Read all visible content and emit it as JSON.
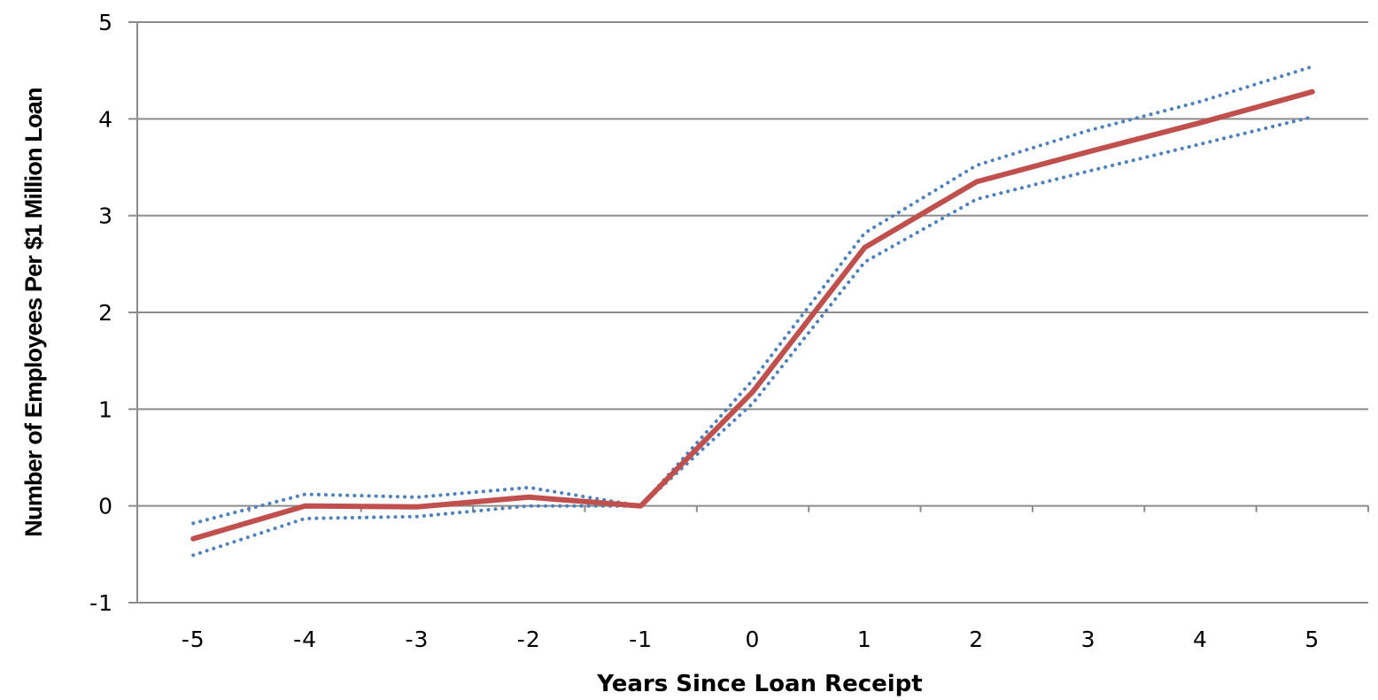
{
  "chart_data": {
    "type": "line",
    "title": "",
    "xlabel": "Years Since Loan Receipt",
    "ylabel": "Number of Employees Per $1 Million Loan",
    "x": [
      -5,
      -4,
      -3,
      -2,
      -1,
      0,
      1,
      2,
      3,
      4,
      5
    ],
    "xlim": [
      -5.5,
      5.5
    ],
    "ylim": [
      -1,
      5
    ],
    "yticks": [
      -1,
      0,
      1,
      2,
      3,
      4,
      5
    ],
    "grid": "horizontal",
    "legend": "none",
    "series": [
      {
        "role": "estimate",
        "style": "solid",
        "color": "#C0504D",
        "values": [
          -0.34,
          0.0,
          -0.01,
          0.09,
          0.0,
          1.18,
          2.67,
          3.35,
          3.66,
          3.96,
          4.28
        ]
      },
      {
        "role": "upper-bound",
        "style": "dotted",
        "color": "#4F81BD",
        "values": [
          -0.18,
          0.12,
          0.09,
          0.19,
          0.0,
          1.3,
          2.82,
          3.52,
          3.88,
          4.18,
          4.54
        ]
      },
      {
        "role": "lower-bound",
        "style": "dotted",
        "color": "#4F81BD",
        "values": [
          -0.51,
          -0.13,
          -0.11,
          0.0,
          0.0,
          1.06,
          2.52,
          3.17,
          3.46,
          3.74,
          4.02
        ]
      }
    ]
  }
}
